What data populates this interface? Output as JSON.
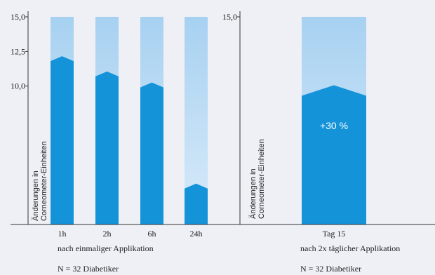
{
  "chart_data": [
    {
      "type": "bar",
      "categories": [
        "1h",
        "2h",
        "6h",
        "24h"
      ],
      "values": [
        11.8,
        10.7,
        9.9,
        2.6
      ],
      "ylim": [
        0,
        15
      ],
      "yticks": [
        "15,0",
        "12,5",
        "10,0"
      ],
      "ytick_values": [
        15.0,
        12.5,
        10.0
      ],
      "ylabel_line1": "Änderungen in",
      "ylabel_line2": "Corneometer-Einheiten",
      "subtitle": "nach einmaliger Applikation",
      "note": "N = 32 Diabetiker",
      "colors": {
        "bar": "#1493d9",
        "track_top": "#a7d1f1",
        "track_bottom": "#d3e8f8"
      }
    },
    {
      "type": "bar",
      "categories": [
        "Tag 15"
      ],
      "values": [
        9.3
      ],
      "ylim": [
        0,
        15
      ],
      "yticks": [
        "15,0"
      ],
      "ytick_values": [
        15.0
      ],
      "ylabel_line1": "Änderungen in",
      "ylabel_line2": "Corneometer-Einheiten",
      "data_label": "+30 %",
      "subtitle": "nach 2x täglicher Applikation",
      "note": "N = 32 Diabetiker",
      "colors": {
        "bar": "#1493d9",
        "track_top": "#a7d1f1",
        "track_bottom": "#d3e8f8"
      }
    }
  ]
}
